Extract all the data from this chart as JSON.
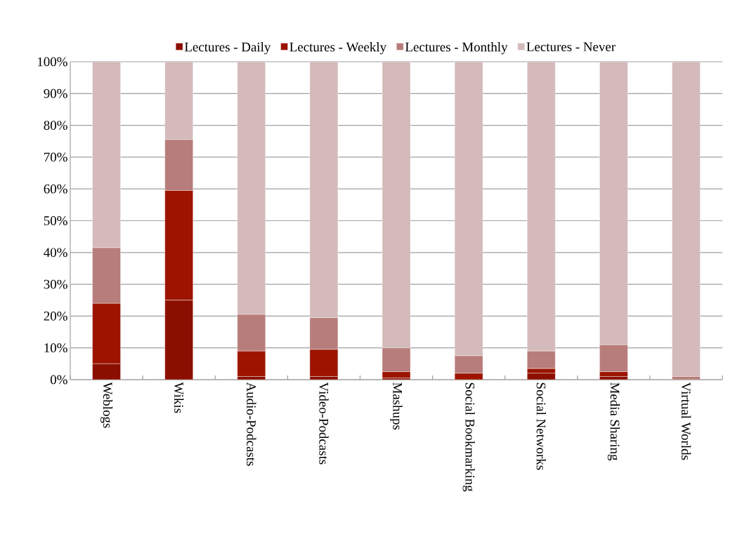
{
  "chart_data": {
    "type": "bar",
    "stacked": true,
    "categories": [
      "Weblogs",
      "Wikis",
      "Audio-Podcasts",
      "Video-Podcasts",
      "Mashups",
      "Social Bookmarking",
      "Social Networks",
      "Media Sharing",
      "Virtual Worlds"
    ],
    "series": [
      {
        "name": "Lectures - Daily",
        "color": "#8b0f00",
        "values": [
          5,
          25,
          1,
          1,
          0.5,
          0,
          2,
          1,
          0
        ]
      },
      {
        "name": "Lectures - Weekly",
        "color": "#9c1400",
        "values": [
          19,
          34.5,
          8,
          8.5,
          2,
          2,
          1.5,
          1.5,
          0
        ]
      },
      {
        "name": "Lectures - Monthly",
        "color": "#b77d7a",
        "values": [
          17.5,
          16,
          11.5,
          10,
          7.5,
          5.5,
          5.5,
          8.5,
          1
        ]
      },
      {
        "name": "Lectures - Never",
        "color": "#d4baba",
        "values": [
          58.5,
          24.5,
          79.5,
          80.5,
          90,
          92.5,
          91,
          89,
          99
        ]
      }
    ],
    "ylim": [
      0,
      100
    ],
    "yticks": [
      {
        "value": 0,
        "label": "0%"
      },
      {
        "value": 10,
        "label": "10%"
      },
      {
        "value": 20,
        "label": "20%"
      },
      {
        "value": 30,
        "label": "30%"
      },
      {
        "value": 40,
        "label": "40%"
      },
      {
        "value": 50,
        "label": "50%"
      },
      {
        "value": 60,
        "label": "60%"
      },
      {
        "value": 70,
        "label": "70%"
      },
      {
        "value": 80,
        "label": "80%"
      },
      {
        "value": 90,
        "label": "90%"
      },
      {
        "value": 100,
        "label": "100%"
      }
    ],
    "grid": "y",
    "legend": "top"
  }
}
